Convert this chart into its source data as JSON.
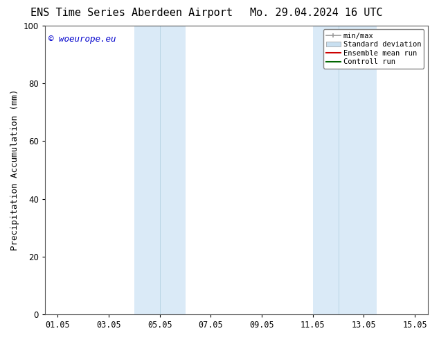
{
  "title_left": "ENS Time Series Aberdeen Airport",
  "title_right": "Mo. 29.04.2024 16 UTC",
  "ylabel": "Precipitation Accumulation (mm)",
  "ylim": [
    0,
    100
  ],
  "yticks": [
    0,
    20,
    40,
    60,
    80,
    100
  ],
  "xtick_labels": [
    "01.05",
    "03.05",
    "05.05",
    "07.05",
    "09.05",
    "11.05",
    "13.05",
    "15.05"
  ],
  "xtick_positions": [
    1,
    3,
    5,
    7,
    9,
    11,
    13,
    15
  ],
  "xlim": [
    0.5,
    15.5
  ],
  "shaded_bands": [
    {
      "x_start": 4.0,
      "x_mid": 5.0,
      "x_end": 6.0,
      "color": "#daeaf7"
    },
    {
      "x_start": 11.0,
      "x_mid": 12.0,
      "x_end": 13.5,
      "color": "#daeaf7"
    }
  ],
  "watermark_text": "© woeurope.eu",
  "watermark_color": "#0000cc",
  "legend_items": [
    {
      "label": "min/max",
      "color": "#999999",
      "type": "minmax"
    },
    {
      "label": "Standard deviation",
      "color": "#c8dff0",
      "type": "bar"
    },
    {
      "label": "Ensemble mean run",
      "color": "#cc0000",
      "type": "line"
    },
    {
      "label": "Controll run",
      "color": "#006600",
      "type": "line"
    }
  ],
  "background_color": "#ffffff",
  "title_fontsize": 11,
  "axis_label_fontsize": 9,
  "tick_fontsize": 8.5,
  "legend_fontsize": 7.5,
  "watermark_fontsize": 9
}
